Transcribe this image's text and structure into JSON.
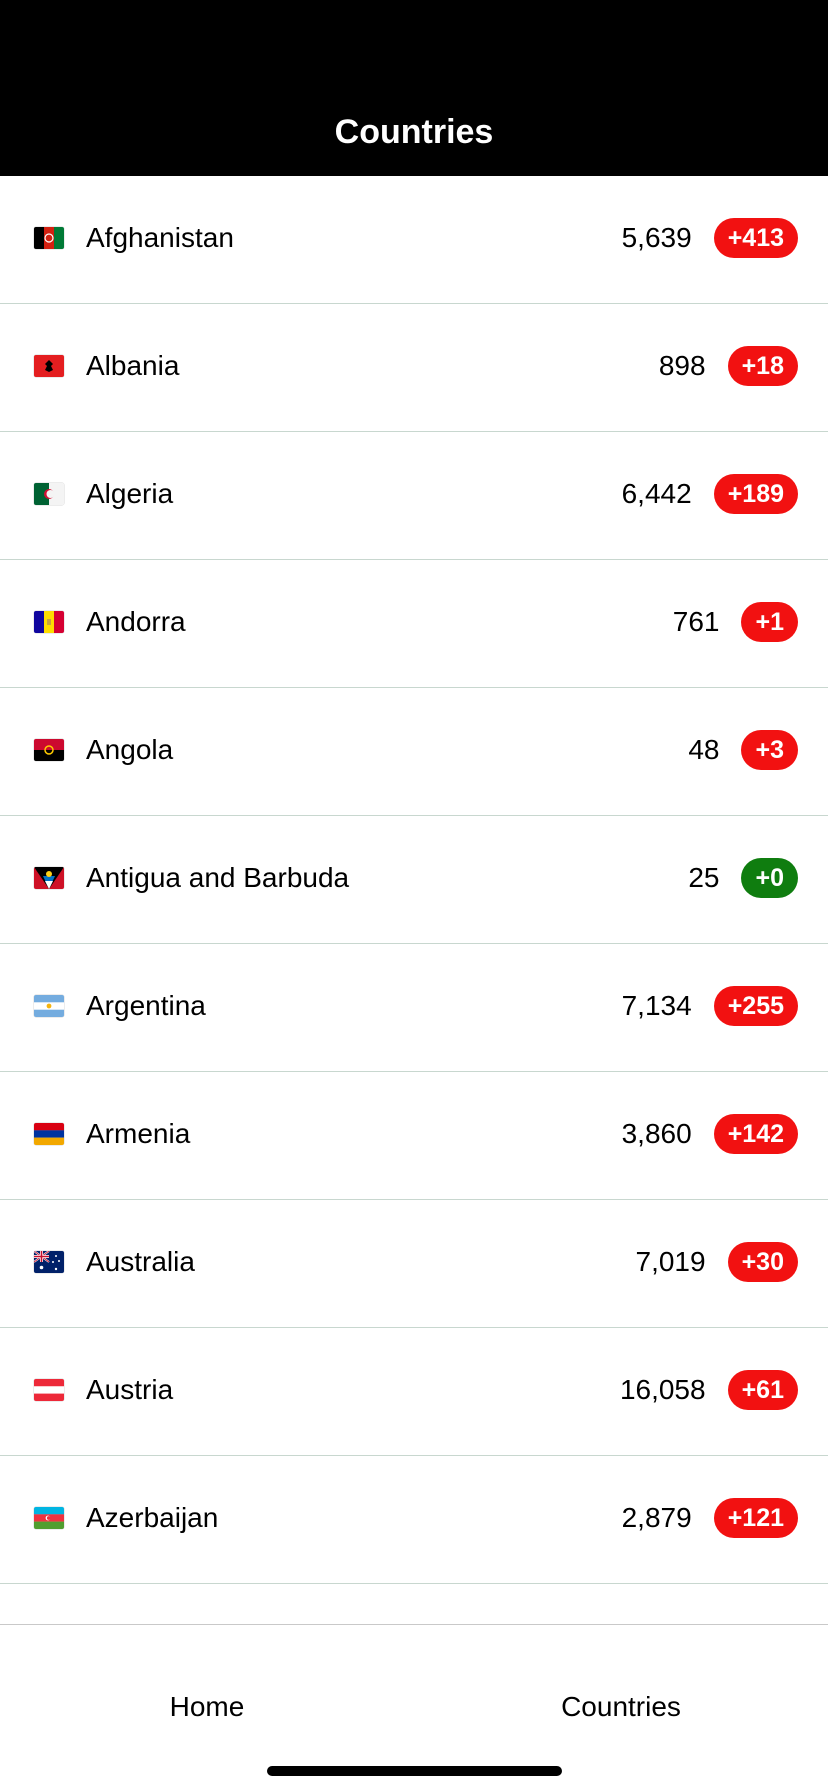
{
  "header": {
    "title": "Countries"
  },
  "countries": [
    {
      "name": "Afghanistan",
      "count": "5,639",
      "delta": "+413",
      "delta_color": "#f21111",
      "flag": "afghanistan-flag-icon"
    },
    {
      "name": "Albania",
      "count": "898",
      "delta": "+18",
      "delta_color": "#f21111",
      "flag": "albania-flag-icon"
    },
    {
      "name": "Algeria",
      "count": "6,442",
      "delta": "+189",
      "delta_color": "#f21111",
      "flag": "algeria-flag-icon"
    },
    {
      "name": "Andorra",
      "count": "761",
      "delta": "+1",
      "delta_color": "#f21111",
      "flag": "andorra-flag-icon"
    },
    {
      "name": "Angola",
      "count": "48",
      "delta": "+3",
      "delta_color": "#f21111",
      "flag": "angola-flag-icon"
    },
    {
      "name": "Antigua and Barbuda",
      "count": "25",
      "delta": "+0",
      "delta_color": "#0f7d0f",
      "flag": "antigua-and-barbuda-flag-icon"
    },
    {
      "name": "Argentina",
      "count": "7,134",
      "delta": "+255",
      "delta_color": "#f21111",
      "flag": "argentina-flag-icon"
    },
    {
      "name": "Armenia",
      "count": "3,860",
      "delta": "+142",
      "delta_color": "#f21111",
      "flag": "armenia-flag-icon"
    },
    {
      "name": "Australia",
      "count": "7,019",
      "delta": "+30",
      "delta_color": "#f21111",
      "flag": "australia-flag-icon"
    },
    {
      "name": "Austria",
      "count": "16,058",
      "delta": "+61",
      "delta_color": "#f21111",
      "flag": "austria-flag-icon"
    },
    {
      "name": "Azerbaijan",
      "count": "2,879",
      "delta": "+121",
      "delta_color": "#f21111",
      "flag": "azerbaijan-flag-icon"
    }
  ],
  "tabbar": {
    "home_label": "Home",
    "countries_label": "Countries"
  }
}
